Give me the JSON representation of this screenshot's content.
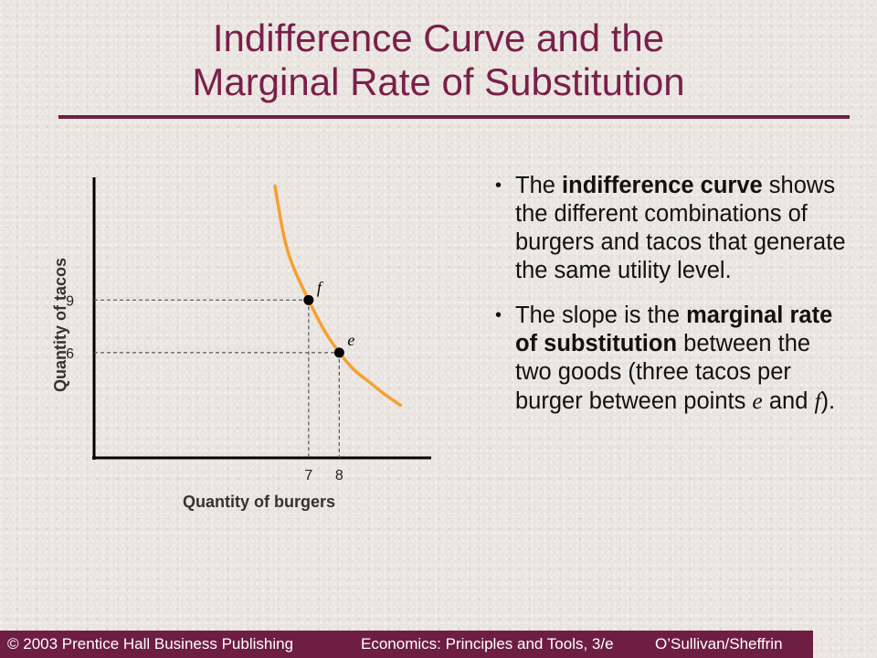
{
  "slide": {
    "title_line1": "Indifference Curve and the",
    "title_line2": "Marginal Rate of Substitution",
    "bullets": [
      {
        "text_before": "The ",
        "bold": "indifference curve",
        "text_after": " shows the different combinations of burgers and tacos that generate the same utility level."
      },
      {
        "text_before": "The slope is the ",
        "bold": "marginal rate of substitution",
        "text_mid": " between the two goods (three tacos per burger between points ",
        "italic1": "e",
        "text_and": " and ",
        "italic2": "f",
        "text_end": ")."
      }
    ],
    "footer": {
      "left": "© 2003 Prentice Hall Business Publishing",
      "middle": "Economics: Principles and Tools, 3/e",
      "right": "O’Sullivan/Sheffrin"
    }
  },
  "colors": {
    "title": "#7a1f4a",
    "rule": "#6e1e42",
    "curve": "#f5a032",
    "footer_bg": "#6e1e42",
    "footer_text": "#ffffff"
  },
  "chart_data": {
    "type": "line",
    "xlabel": "Quantity of burgers",
    "ylabel": "Quantity of tacos",
    "xlim": [
      0,
      11
    ],
    "ylim": [
      0,
      16
    ],
    "x_ticks": [
      7,
      8
    ],
    "y_ticks": [
      9,
      6
    ],
    "curve": {
      "x": [
        5.9,
        6.2,
        6.5,
        7,
        7.5,
        8,
        8.5,
        9,
        9.5,
        10
      ],
      "y": [
        15.5,
        12.6,
        10.9,
        9,
        7.3,
        6,
        5.0,
        4.3,
        3.6,
        3.0
      ]
    },
    "points": [
      {
        "label": "f",
        "x": 7,
        "y": 9
      },
      {
        "label": "e",
        "x": 8,
        "y": 6
      }
    ],
    "grid": false
  }
}
